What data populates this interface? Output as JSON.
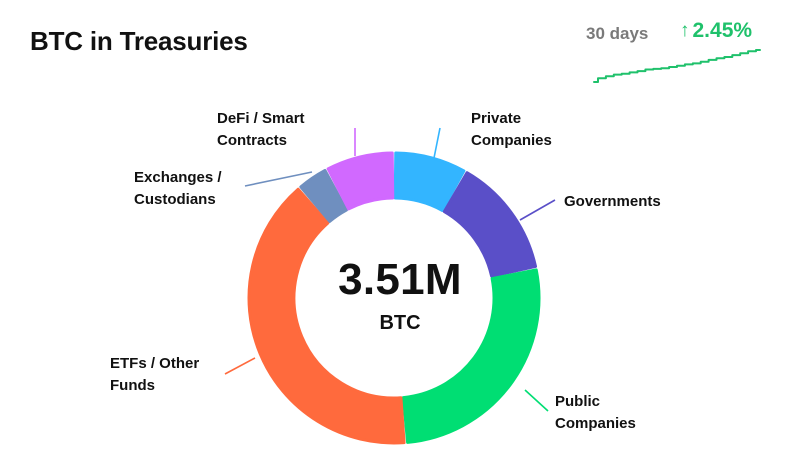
{
  "header": {
    "title": "BTC in Treasuries",
    "period": "30 days",
    "change": "2.45%",
    "change_arrow": "↑",
    "change_color": "#1fc16b"
  },
  "center": {
    "value": "3.51M",
    "unit": "BTC"
  },
  "chart_data": {
    "type": "pie",
    "variant": "donut",
    "title": "BTC in Treasuries",
    "center_label": "3.51M BTC",
    "slices": [
      {
        "name": "Private Companies",
        "value": 8.2,
        "color": "#33b5ff"
      },
      {
        "name": "Governments",
        "value": 13.5,
        "color": "#5a4fc8"
      },
      {
        "name": "Public Companies",
        "value": 27.0,
        "color": "#00de73"
      },
      {
        "name": "ETFs / Other Funds",
        "value": 40.0,
        "color": "#ff6a3d"
      },
      {
        "name": "Exchanges / Custodians",
        "value": 3.6,
        "color": "#6f8fbf"
      },
      {
        "name": "DeFi / Smart Contracts",
        "value": 7.7,
        "color": "#d169ff"
      }
    ]
  },
  "sparkline": {
    "color": "#1fc16b",
    "values": [
      0.0,
      0.12,
      0.18,
      0.23,
      0.26,
      0.3,
      0.34,
      0.39,
      0.41,
      0.43,
      0.47,
      0.51,
      0.55,
      0.58,
      0.63,
      0.69,
      0.74,
      0.78,
      0.84,
      0.9,
      0.96,
      1.0
    ]
  },
  "labels": {
    "private_companies": [
      "Private",
      "Companies"
    ],
    "governments": [
      "Governments"
    ],
    "public_companies": [
      "Public",
      "Companies"
    ],
    "etfs_other_funds": [
      "ETFs / Other",
      "Funds"
    ],
    "exchanges_custodians": [
      "Exchanges /",
      "Custodians"
    ],
    "defi_smart_contracts": [
      "DeFi / Smart",
      "Contracts"
    ]
  }
}
